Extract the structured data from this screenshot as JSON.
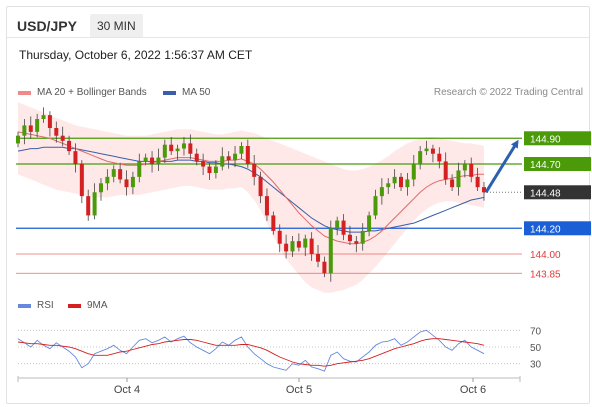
{
  "header": {
    "symbol": "USD/JPY",
    "timeframe": "30 MIN",
    "datetime": "Thursday, October 6, 2022 1:56:37 AM CET"
  },
  "legend": {
    "items": [
      {
        "label": "MA 20 + Bollinger Bands",
        "color": "#f08a8a"
      },
      {
        "label": "MA 50",
        "color": "#3a5fa8"
      }
    ],
    "credit": "Research © 2022 Trading Central"
  },
  "rsi_legend": {
    "items": [
      {
        "label": "RSI",
        "color": "#6688dd"
      },
      {
        "label": "9MA",
        "color": "#d42020"
      }
    ]
  },
  "chart_data": [
    {
      "type": "candlestick",
      "x_ticks": [
        "Oct 4",
        "Oct 5",
        "Oct 6"
      ],
      "price_levels": [
        {
          "value": 144.9,
          "label": "144.90",
          "kind": "resistance",
          "color": "#4a9a0a"
        },
        {
          "value": 144.7,
          "label": "144.70",
          "kind": "resistance",
          "color": "#4a9a0a"
        },
        {
          "value": 144.48,
          "label": "144.48",
          "kind": "last",
          "color": "#333333"
        },
        {
          "value": 144.2,
          "label": "144.20",
          "kind": "pivot",
          "color": "#1a5fd6"
        },
        {
          "value": 144.0,
          "label": "144.00",
          "kind": "support",
          "color": "#e03a3a"
        },
        {
          "value": 143.85,
          "label": "143.85",
          "kind": "support",
          "color": "#e03a3a"
        }
      ],
      "close": [
        144.92,
        145.0,
        144.95,
        145.05,
        145.08,
        144.98,
        144.92,
        144.88,
        144.8,
        144.7,
        144.45,
        144.3,
        144.48,
        144.55,
        144.6,
        144.66,
        144.58,
        144.52,
        144.6,
        144.72,
        144.75,
        144.7,
        144.75,
        144.85,
        144.8,
        144.82,
        144.86,
        144.78,
        144.72,
        144.68,
        144.63,
        144.68,
        144.76,
        144.73,
        144.78,
        144.84,
        144.7,
        144.6,
        144.45,
        144.3,
        144.18,
        144.08,
        144.02,
        144.1,
        144.05,
        144.12,
        144.0,
        143.94,
        143.85,
        144.2,
        144.26,
        144.15,
        144.1,
        144.08,
        144.18,
        144.3,
        144.45,
        144.52,
        144.55,
        144.6,
        144.52,
        144.58,
        144.7,
        144.8,
        144.82,
        144.78,
        144.72,
        144.58,
        144.52,
        144.65,
        144.7,
        144.6,
        144.52,
        144.48
      ],
      "bollinger_upper": [
        145.18,
        145.16,
        145.14,
        145.12,
        145.1,
        145.08,
        145.06,
        145.04,
        145.02,
        145.0,
        144.99,
        144.98,
        144.97,
        144.96,
        144.95,
        144.94,
        144.93,
        144.92,
        144.92,
        144.92,
        144.92,
        144.93,
        144.94,
        144.95,
        144.96,
        144.97,
        144.97,
        144.97,
        144.96,
        144.95,
        144.94,
        144.93,
        144.93,
        144.94,
        144.95,
        144.96,
        144.95,
        144.94,
        144.92,
        144.9,
        144.88,
        144.86,
        144.84,
        144.82,
        144.8,
        144.78,
        144.76,
        144.74,
        144.72,
        144.7,
        144.68,
        144.66,
        144.65,
        144.65,
        144.66,
        144.68,
        144.7,
        144.73,
        144.76,
        144.8,
        144.83,
        144.86,
        144.88,
        144.9,
        144.91,
        144.91,
        144.9,
        144.89,
        144.88,
        144.87,
        144.86,
        144.86,
        144.85,
        144.84
      ],
      "ma20": [
        144.95,
        144.94,
        144.93,
        144.92,
        144.91,
        144.9,
        144.88,
        144.86,
        144.84,
        144.82,
        144.8,
        144.78,
        144.76,
        144.74,
        144.72,
        144.71,
        144.7,
        144.69,
        144.69,
        144.69,
        144.7,
        144.71,
        144.72,
        144.73,
        144.74,
        144.75,
        144.75,
        144.75,
        144.74,
        144.73,
        144.72,
        144.72,
        144.72,
        144.73,
        144.73,
        144.74,
        144.72,
        144.7,
        144.66,
        144.61,
        144.56,
        144.5,
        144.44,
        144.38,
        144.32,
        144.27,
        144.22,
        144.18,
        144.14,
        144.12,
        144.1,
        144.09,
        144.08,
        144.08,
        144.09,
        144.11,
        144.14,
        144.18,
        144.23,
        144.28,
        144.33,
        144.38,
        144.43,
        144.48,
        144.52,
        144.55,
        144.57,
        144.58,
        144.59,
        144.6,
        144.61,
        144.61,
        144.62,
        144.62
      ],
      "bollinger_lower": [
        144.62,
        144.6,
        144.58,
        144.56,
        144.54,
        144.52,
        144.5,
        144.49,
        144.48,
        144.47,
        144.46,
        144.45,
        144.44,
        144.44,
        144.44,
        144.45,
        144.46,
        144.46,
        144.46,
        144.46,
        144.47,
        144.48,
        144.49,
        144.5,
        144.51,
        144.52,
        144.53,
        144.53,
        144.52,
        144.51,
        144.5,
        144.5,
        144.5,
        144.51,
        144.51,
        144.52,
        144.48,
        144.42,
        144.34,
        144.24,
        144.14,
        144.04,
        143.96,
        143.9,
        143.84,
        143.78,
        143.74,
        143.72,
        143.7,
        143.7,
        143.71,
        143.72,
        143.74,
        143.76,
        143.8,
        143.85,
        143.9,
        143.96,
        144.02,
        144.08,
        144.14,
        144.2,
        144.26,
        144.31,
        144.35,
        144.38,
        144.4,
        144.41,
        144.41,
        144.4,
        144.39,
        144.38,
        144.37,
        144.36
      ],
      "ma50": [
        144.8,
        144.81,
        144.82,
        144.82,
        144.83,
        144.83,
        144.83,
        144.83,
        144.82,
        144.82,
        144.81,
        144.8,
        144.79,
        144.78,
        144.77,
        144.76,
        144.75,
        144.74,
        144.73,
        144.72,
        144.72,
        144.72,
        144.72,
        144.72,
        144.72,
        144.73,
        144.73,
        144.73,
        144.72,
        144.72,
        144.71,
        144.71,
        144.7,
        144.7,
        144.69,
        144.68,
        144.66,
        144.63,
        144.6,
        144.56,
        144.52,
        144.48,
        144.44,
        144.4,
        144.36,
        144.32,
        144.28,
        144.25,
        144.22,
        144.2,
        144.19,
        144.18,
        144.17,
        144.17,
        144.17,
        144.18,
        144.18,
        144.19,
        144.2,
        144.21,
        144.22,
        144.23,
        144.24,
        144.26,
        144.28,
        144.3,
        144.32,
        144.34,
        144.36,
        144.38,
        144.4,
        144.42,
        144.43,
        144.44
      ],
      "forecast": {
        "from": 144.48,
        "to": 144.9
      },
      "ylim": [
        143.72,
        145.12
      ]
    },
    {
      "type": "line",
      "title": "RSI",
      "y_ticks": [
        "70",
        "50",
        "30"
      ],
      "ylim": [
        20,
        80
      ],
      "series": [
        {
          "name": "RSI",
          "values": [
            60,
            55,
            50,
            58,
            52,
            48,
            55,
            50,
            45,
            38,
            25,
            30,
            42,
            45,
            48,
            52,
            46,
            42,
            50,
            58,
            60,
            55,
            58,
            62,
            56,
            60,
            63,
            55,
            50,
            46,
            42,
            48,
            56,
            52,
            58,
            62,
            50,
            42,
            36,
            30,
            26,
            24,
            22,
            30,
            28,
            34,
            26,
            24,
            21,
            40,
            44,
            36,
            33,
            32,
            38,
            44,
            52,
            56,
            57,
            60,
            52,
            56,
            62,
            68,
            70,
            64,
            58,
            50,
            46,
            54,
            58,
            50,
            46,
            42
          ]
        },
        {
          "name": "9MA",
          "values": [
            56,
            55,
            54,
            54,
            53,
            52,
            52,
            51,
            50,
            48,
            45,
            42,
            40,
            40,
            40,
            42,
            44,
            45,
            47,
            49,
            51,
            53,
            54,
            56,
            57,
            58,
            59,
            59,
            58,
            56,
            54,
            52,
            52,
            52,
            52,
            53,
            53,
            51,
            49,
            46,
            42,
            38,
            35,
            32,
            30,
            29,
            28,
            28,
            27,
            28,
            30,
            31,
            32,
            33,
            34,
            36,
            39,
            42,
            45,
            48,
            50,
            52,
            54,
            57,
            59,
            60,
            60,
            59,
            58,
            57,
            56,
            55,
            54,
            52
          ]
        }
      ]
    }
  ]
}
